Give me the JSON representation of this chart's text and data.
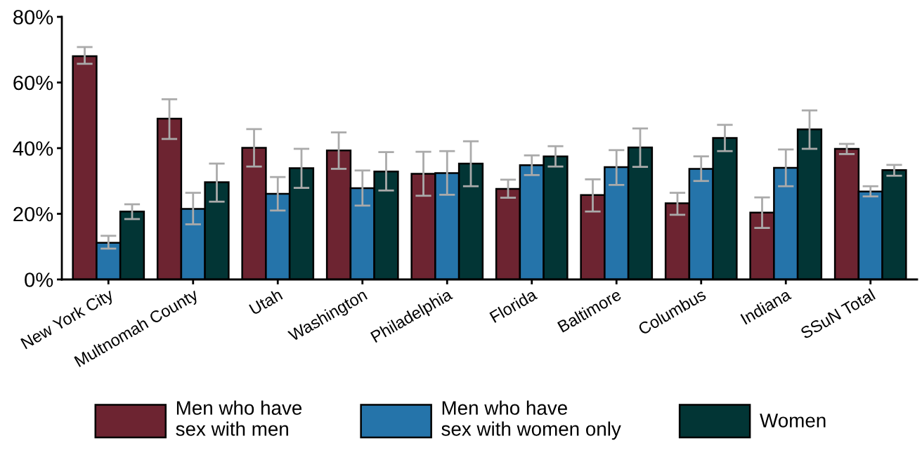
{
  "chart_data": {
    "type": "bar",
    "categories": [
      "New York City",
      "Multnomah County",
      "Utah",
      "Washington",
      "Philadelphia",
      "Florida",
      "Baltimore",
      "Columbus",
      "Indiana",
      "SSuN Total"
    ],
    "series": [
      {
        "name": "Men who have\nsex with men",
        "color": "#6d2431",
        "values": [
          68.0,
          49.0,
          40.1,
          39.3,
          32.2,
          27.6,
          25.7,
          23.2,
          20.4,
          39.8
        ],
        "errors": [
          [
            65.7,
            70.8
          ],
          [
            42.8,
            54.9
          ],
          [
            34.4,
            45.8
          ],
          [
            33.7,
            44.8
          ],
          [
            25.5,
            38.9
          ],
          [
            24.9,
            30.4
          ],
          [
            20.7,
            30.5
          ],
          [
            19.7,
            26.4
          ],
          [
            15.7,
            25.0
          ],
          [
            38.2,
            41.3
          ]
        ]
      },
      {
        "name": "Men who have\nsex with women only",
        "color": "#2574aa",
        "values": [
          11.2,
          21.5,
          26.1,
          27.8,
          32.4,
          34.8,
          34.2,
          33.7,
          34.0,
          26.8
        ],
        "errors": [
          [
            9.4,
            13.3
          ],
          [
            16.8,
            26.4
          ],
          [
            21.0,
            31.2
          ],
          [
            22.5,
            33.2
          ],
          [
            25.8,
            39.1
          ],
          [
            31.8,
            37.8
          ],
          [
            28.8,
            39.4
          ],
          [
            30.0,
            37.5
          ],
          [
            28.4,
            39.6
          ],
          [
            25.3,
            28.4
          ]
        ]
      },
      {
        "name": "Women",
        "color": "#023535",
        "values": [
          20.7,
          29.6,
          33.9,
          32.9,
          35.3,
          37.5,
          40.2,
          43.1,
          45.7,
          33.3
        ],
        "errors": [
          [
            18.4,
            22.9
          ],
          [
            23.7,
            35.3
          ],
          [
            27.9,
            39.8
          ],
          [
            27.1,
            38.8
          ],
          [
            28.4,
            42.1
          ],
          [
            34.4,
            40.6
          ],
          [
            34.3,
            46.0
          ],
          [
            39.1,
            47.1
          ],
          [
            39.8,
            51.5
          ],
          [
            31.6,
            34.9
          ]
        ]
      }
    ],
    "ylim": [
      0,
      80
    ],
    "yticks": [
      {
        "value": 0,
        "label": "0%"
      },
      {
        "value": 20,
        "label": "20%"
      },
      {
        "value": 40,
        "label": "40%"
      },
      {
        "value": 60,
        "label": "60%"
      },
      {
        "value": 80,
        "label": "80%"
      }
    ],
    "grid": false,
    "legend": "bottom"
  }
}
